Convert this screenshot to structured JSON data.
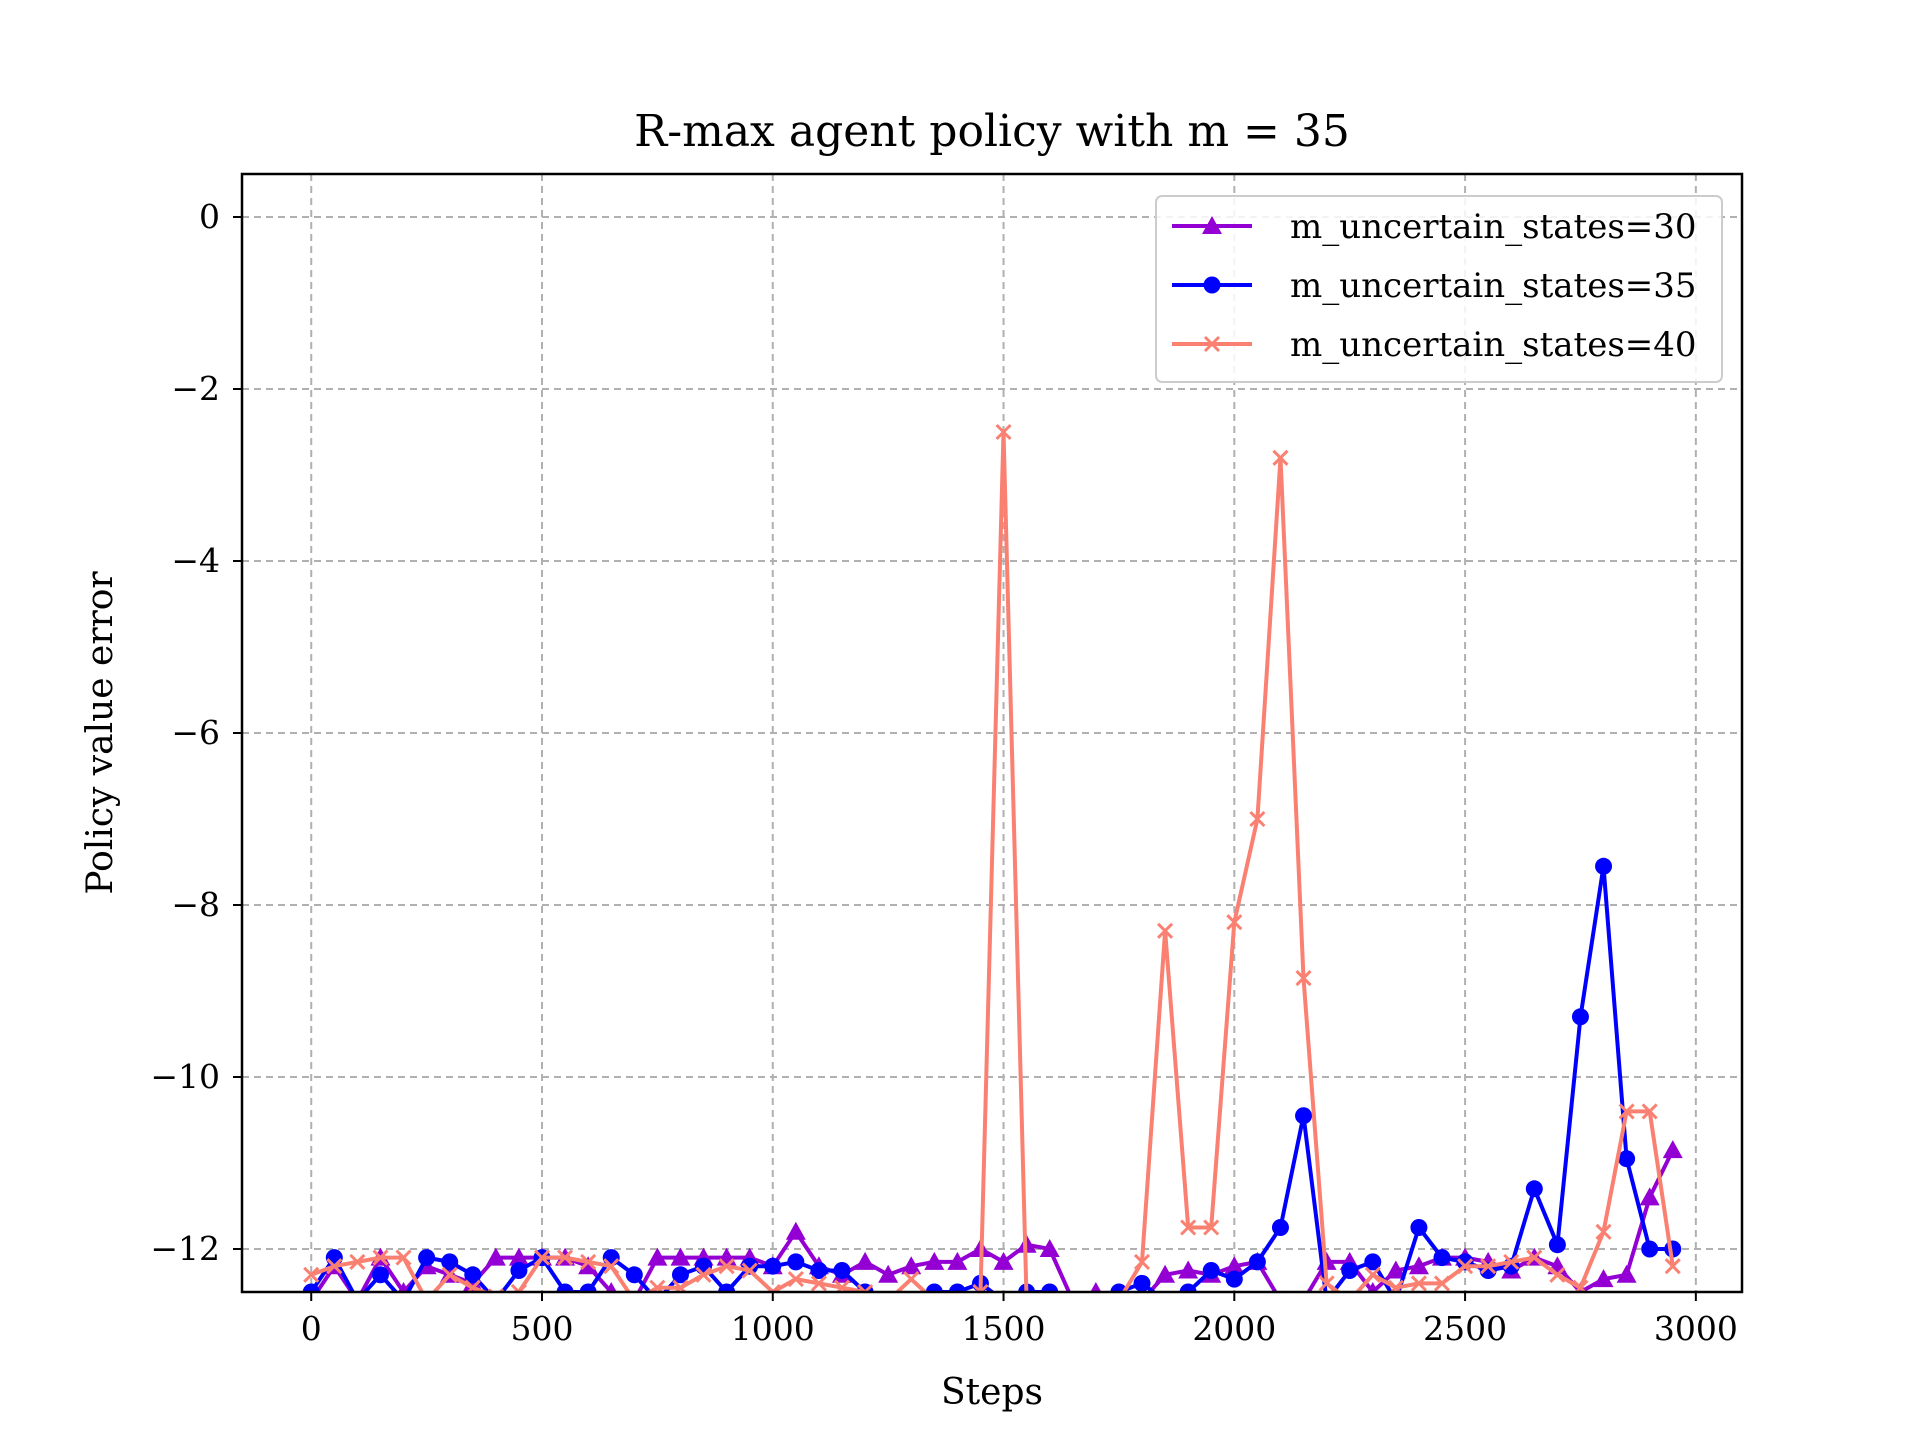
{
  "chart_data": {
    "type": "line",
    "title": "R-max agent policy with m = 35",
    "xlabel": "Steps",
    "ylabel": "Policy value error",
    "xlim": [
      -150,
      3100
    ],
    "ylim": [
      -12.5,
      0.5
    ],
    "xticks": [
      0,
      500,
      1000,
      1500,
      2000,
      2500,
      3000
    ],
    "yticks": [
      0,
      -2,
      -4,
      -6,
      -8,
      -10,
      -12
    ],
    "xtick_labels": [
      "0",
      "500",
      "1000",
      "1500",
      "2000",
      "2500",
      "3000"
    ],
    "ytick_labels": [
      "0",
      "−2",
      "−4",
      "−6",
      "−8",
      "−10",
      "−12"
    ],
    "grid": true,
    "legend_position": "upper right",
    "series": [
      {
        "name": "m_uncertain_states=30",
        "color": "#9400D3",
        "marker": "triangle",
        "x": [
          0,
          50,
          100,
          150,
          200,
          250,
          300,
          350,
          400,
          450,
          500,
          550,
          600,
          650,
          700,
          750,
          800,
          850,
          900,
          950,
          1000,
          1050,
          1100,
          1150,
          1200,
          1250,
          1300,
          1350,
          1400,
          1450,
          1500,
          1550,
          1600,
          1650,
          1700,
          1750,
          1800,
          1850,
          1900,
          1950,
          2000,
          2050,
          2100,
          2150,
          2200,
          2250,
          2300,
          2350,
          2400,
          2450,
          2500,
          2550,
          2600,
          2650,
          2700,
          2750,
          2800,
          2850,
          2900,
          2950
        ],
        "y": [
          -12.6,
          -12.2,
          -12.6,
          -12.1,
          -12.5,
          -12.2,
          -12.3,
          -12.4,
          -12.1,
          -12.1,
          -12.1,
          -12.1,
          -12.2,
          -12.5,
          -12.6,
          -12.1,
          -12.1,
          -12.1,
          -12.1,
          -12.1,
          -12.2,
          -11.8,
          -12.2,
          -12.3,
          -12.15,
          -12.3,
          -12.2,
          -12.15,
          -12.15,
          -12.0,
          -12.15,
          -11.95,
          -12.0,
          -12.6,
          -12.5,
          -12.6,
          -12.6,
          -12.3,
          -12.25,
          -12.3,
          -12.2,
          -12.15,
          -12.6,
          -12.6,
          -12.15,
          -12.15,
          -12.5,
          -12.25,
          -12.2,
          -12.1,
          -12.1,
          -12.15,
          -12.25,
          -12.1,
          -12.2,
          -12.5,
          -12.35,
          -12.3,
          -11.4,
          -10.85
        ]
      },
      {
        "name": "m_uncertain_states=35",
        "color": "#0000FF",
        "marker": "circle",
        "x": [
          0,
          50,
          100,
          150,
          200,
          250,
          300,
          350,
          400,
          450,
          500,
          550,
          600,
          650,
          700,
          750,
          800,
          850,
          900,
          950,
          1000,
          1050,
          1100,
          1150,
          1200,
          1250,
          1300,
          1350,
          1400,
          1450,
          1500,
          1550,
          1600,
          1650,
          1700,
          1750,
          1800,
          1850,
          1900,
          1950,
          2000,
          2050,
          2100,
          2150,
          2200,
          2250,
          2300,
          2350,
          2400,
          2450,
          2500,
          2550,
          2600,
          2650,
          2700,
          2750,
          2800,
          2850,
          2900,
          2950
        ],
        "y": [
          -12.5,
          -12.1,
          -12.6,
          -12.3,
          -12.6,
          -12.1,
          -12.15,
          -12.3,
          -12.6,
          -12.25,
          -12.1,
          -12.5,
          -12.5,
          -12.1,
          -12.3,
          -12.6,
          -12.3,
          -12.2,
          -12.5,
          -12.2,
          -12.2,
          -12.15,
          -12.25,
          -12.25,
          -12.5,
          -12.6,
          -12.6,
          -12.5,
          -12.5,
          -12.4,
          -12.6,
          -12.5,
          -12.5,
          -12.6,
          -12.6,
          -12.5,
          -12.4,
          -12.6,
          -12.5,
          -12.25,
          -12.35,
          -12.15,
          -11.75,
          -10.45,
          -12.6,
          -12.25,
          -12.15,
          -12.6,
          -11.75,
          -12.1,
          -12.15,
          -12.25,
          -12.2,
          -11.3,
          -11.95,
          -9.3,
          -7.55,
          -10.95,
          -12.0,
          -12.0
        ]
      },
      {
        "name": "m_uncertain_states=40",
        "color": "#FA8072",
        "marker": "x",
        "x": [
          0,
          50,
          100,
          150,
          200,
          250,
          300,
          350,
          400,
          450,
          500,
          550,
          600,
          650,
          700,
          750,
          800,
          850,
          900,
          950,
          1000,
          1050,
          1100,
          1150,
          1200,
          1250,
          1300,
          1350,
          1400,
          1450,
          1500,
          1550,
          1600,
          1650,
          1700,
          1750,
          1800,
          1850,
          1900,
          1950,
          2000,
          2050,
          2100,
          2150,
          2200,
          2250,
          2300,
          2350,
          2400,
          2450,
          2500,
          2550,
          2600,
          2650,
          2700,
          2750,
          2800,
          2850,
          2900,
          2950
        ],
        "y": [
          -12.3,
          -12.2,
          -12.15,
          -12.1,
          -12.1,
          -12.6,
          -12.3,
          -12.45,
          -12.55,
          -12.5,
          -12.1,
          -12.1,
          -12.15,
          -12.2,
          -12.6,
          -12.45,
          -12.45,
          -12.3,
          -12.2,
          -12.25,
          -12.5,
          -12.35,
          -12.4,
          -12.45,
          -12.5,
          -12.6,
          -12.35,
          -12.6,
          -12.6,
          -12.5,
          -2.5,
          -12.6,
          -12.6,
          -12.6,
          -12.6,
          -12.6,
          -12.15,
          -8.3,
          -11.75,
          -11.75,
          -8.2,
          -7.0,
          -2.8,
          -8.85,
          -12.4,
          -12.6,
          -12.3,
          -12.45,
          -12.4,
          -12.4,
          -12.2,
          -12.2,
          -12.15,
          -12.1,
          -12.3,
          -12.45,
          -11.8,
          -10.4,
          -10.4,
          -12.2
        ]
      }
    ]
  }
}
